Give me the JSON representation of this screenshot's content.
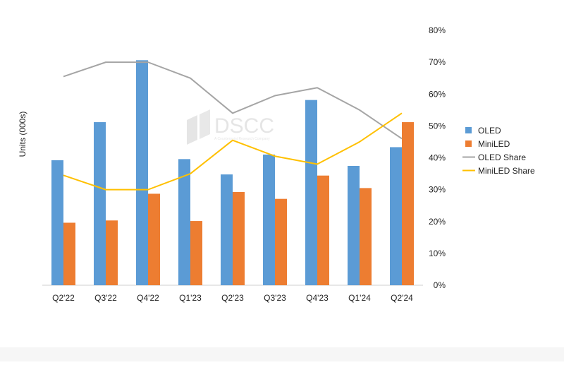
{
  "chart_data": {
    "type": "bar",
    "categories": [
      "Q2'22",
      "Q3'22",
      "Q4'22",
      "Q1'23",
      "Q2'23",
      "Q3'23",
      "Q4'23",
      "Q1'24",
      "Q2'24"
    ],
    "ylabel": "Units  (000s)",
    "y2_ticks": [
      "0%",
      "10%",
      "20%",
      "30%",
      "40%",
      "50%",
      "60%",
      "70%",
      "80%"
    ],
    "y2lim": [
      0,
      80
    ],
    "series": [
      {
        "name": "OLED",
        "type": "bar",
        "color": "#5b9bd5",
        "values": [
          220,
          287,
          396,
          222,
          195,
          230,
          326,
          210,
          243
        ]
      },
      {
        "name": "MiniLED",
        "type": "bar",
        "color": "#ed7d31",
        "values": [
          110,
          114,
          161,
          113,
          164,
          152,
          193,
          171,
          287
        ]
      },
      {
        "name": "OLED Share",
        "type": "line",
        "axis": "right",
        "color": "#a5a5a5",
        "values": [
          65.5,
          70,
          70,
          65,
          54,
          59.5,
          62,
          55,
          46
        ]
      },
      {
        "name": "MiniLED Share",
        "type": "line",
        "axis": "right",
        "color": "#ffc000",
        "values": [
          34.5,
          30,
          30,
          35,
          45.5,
          40.5,
          38,
          45,
          54
        ]
      }
    ],
    "legend_position": "right",
    "grid": false,
    "watermark": {
      "text": "DSCC",
      "tagline": "A Counterpoint Research Company"
    }
  }
}
